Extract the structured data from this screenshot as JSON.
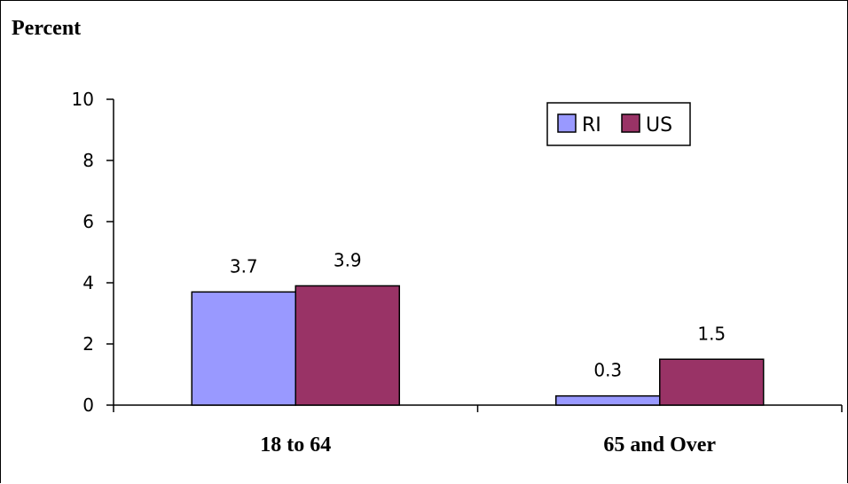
{
  "chart_data": {
    "type": "bar",
    "title": "",
    "ylabel": "Percent",
    "xlabel": "",
    "ylim": [
      0,
      10
    ],
    "yticks": [
      0,
      2,
      4,
      6,
      8,
      10
    ],
    "categories": [
      "18 to 64",
      "65 and Over"
    ],
    "series": [
      {
        "name": "RI",
        "values": [
          3.7,
          0.3
        ],
        "color": "#9999ff"
      },
      {
        "name": "US",
        "values": [
          3.9,
          1.5
        ],
        "color": "#993366"
      }
    ],
    "data_labels": true,
    "legend_position": "top-right",
    "grid": false
  }
}
